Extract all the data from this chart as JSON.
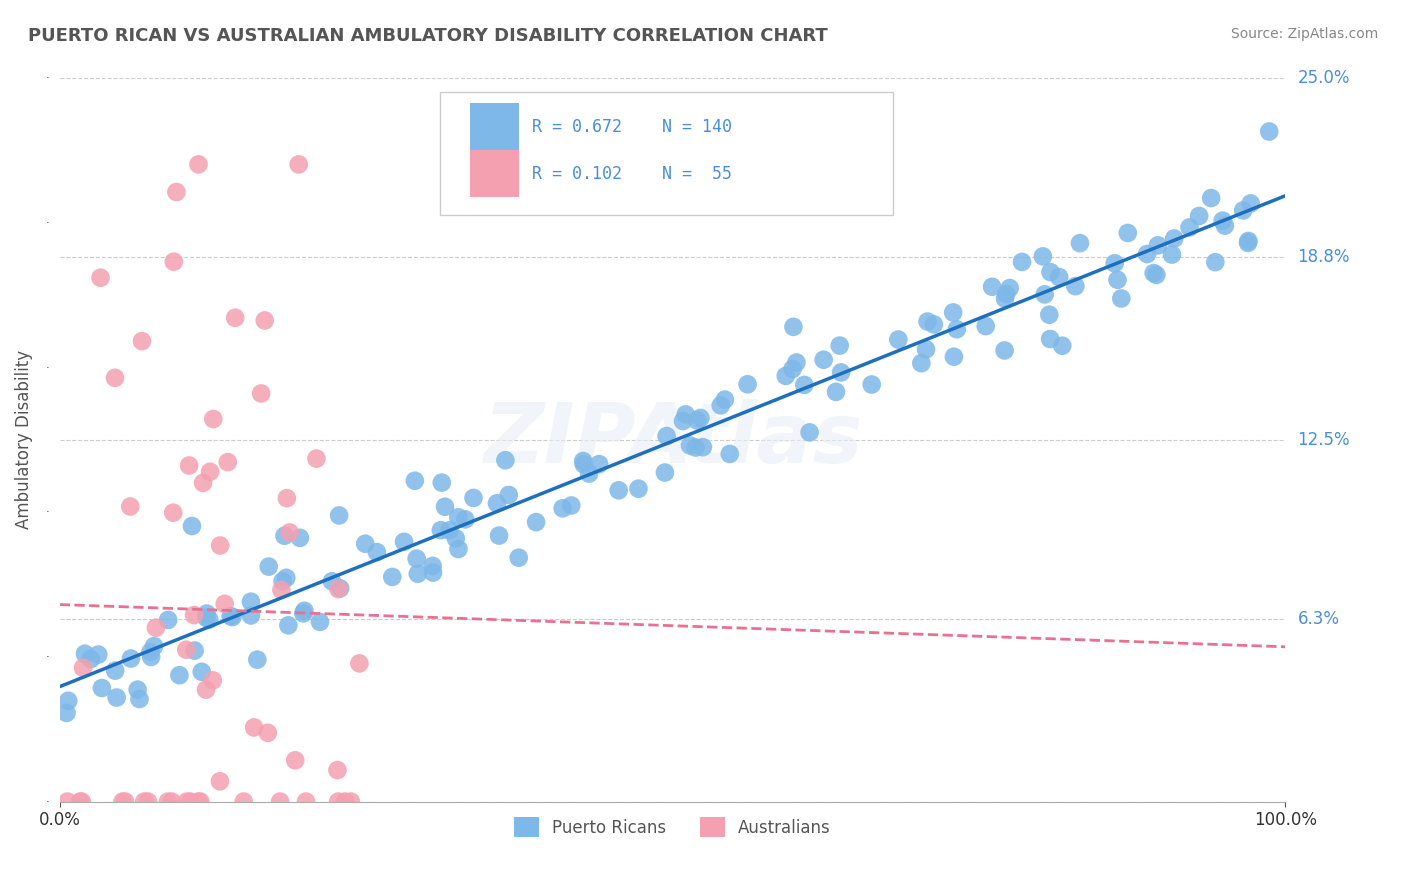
{
  "title": "PUERTO RICAN VS AUSTRALIAN AMBULATORY DISABILITY CORRELATION CHART",
  "source": "Source: ZipAtlas.com",
  "xlabel": "",
  "ylabel": "Ambulatory Disability",
  "xlim": [
    0,
    1.0
  ],
  "ylim": [
    0,
    0.25
  ],
  "yticks": [
    0.0,
    0.063,
    0.125,
    0.188,
    0.25
  ],
  "ytick_labels": [
    "",
    "6.3%",
    "12.5%",
    "18.8%",
    "25.0%"
  ],
  "xticks": [
    0.0,
    1.0
  ],
  "xtick_labels": [
    "0.0%",
    "100.0%"
  ],
  "blue_R": 0.672,
  "blue_N": 140,
  "pink_R": 0.102,
  "pink_N": 55,
  "blue_color": "#7EB8E8",
  "pink_color": "#F4A0B0",
  "blue_line_color": "#1F6FBF",
  "pink_line_color": "#E87090",
  "legend_label_blue": "Puerto Ricans",
  "legend_label_pink": "Australians",
  "background_color": "#FFFFFF",
  "grid_color": "#CCCCCC",
  "title_color": "#555555",
  "watermark": "ZIPAtlas",
  "blue_scatter_seed": 42,
  "pink_scatter_seed": 7
}
